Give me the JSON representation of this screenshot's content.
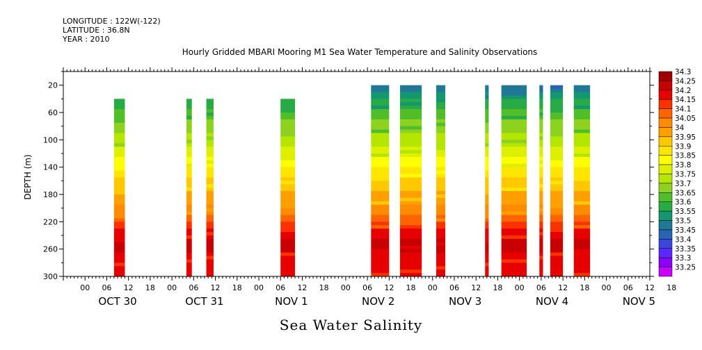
{
  "meta": {
    "longitude": "LONGITUDE : 122W(-122)",
    "latitude": "LATITUDE : 36.8N",
    "year": "YEAR : 2010"
  },
  "chart_data": {
    "type": "heatmap",
    "title": "Hourly Gridded MBARI Mooring M1 Sea Water Temperature and Salinity Observations",
    "xlabel": "Sea Water Salinity",
    "ylabel": "DEPTH (m)",
    "x_range_hours": [
      -6,
      156
    ],
    "x_ticks_hours": [
      "00",
      "06",
      "12",
      "18",
      "00",
      "06",
      "12",
      "18",
      "00",
      "06",
      "12",
      "18",
      "00",
      "06",
      "12",
      "18",
      "00",
      "06",
      "12",
      "18",
      "00",
      "06",
      "12",
      "18",
      "00",
      "06",
      "12",
      "18"
    ],
    "day_labels": [
      "OCT 30",
      "OCT 31",
      "NOV  1",
      "NOV  2",
      "NOV  3",
      "NOV  4",
      "NOV  5"
    ],
    "y_ticks": [
      20,
      60,
      100,
      140,
      180,
      220,
      260,
      300
    ],
    "ylim": [
      300,
      0
    ],
    "colorbar": {
      "levels": [
        "34.3",
        "34.25",
        "34.2",
        "34.15",
        "34.1",
        "34.05",
        "34",
        "33.95",
        "33.9",
        "33.85",
        "33.8",
        "33.75",
        "33.7",
        "33.65",
        "33.6",
        "33.55",
        "33.5",
        "33.45",
        "33.4",
        "33.35",
        "33.3",
        "33.25"
      ],
      "colors": [
        "#a00000",
        "#c80000",
        "#e60000",
        "#fa3200",
        "#ff6400",
        "#ff8c00",
        "#ffa000",
        "#ffc800",
        "#ffe600",
        "#ffff00",
        "#dcf000",
        "#b4e600",
        "#8cd21e",
        "#50be28",
        "#28aa46",
        "#14966e",
        "#1e7896",
        "#2864b4",
        "#3c46dc",
        "#5a28ff",
        "#8c00ff",
        "#c800ff"
      ]
    },
    "data_blocks": [
      {
        "start_hour": 8,
        "end_hour": 11,
        "top_depth": 40
      },
      {
        "start_hour": 28,
        "end_hour": 29.5,
        "top_depth": 40
      },
      {
        "start_hour": 33.5,
        "end_hour": 35.5,
        "top_depth": 40
      },
      {
        "start_hour": 54,
        "end_hour": 58,
        "top_depth": 40
      },
      {
        "start_hour": 79,
        "end_hour": 84,
        "top_depth": 20
      },
      {
        "start_hour": 87,
        "end_hour": 93,
        "top_depth": 20
      },
      {
        "start_hour": 97,
        "end_hour": 99.5,
        "top_depth": 20
      },
      {
        "start_hour": 110.5,
        "end_hour": 111.5,
        "top_depth": 20
      },
      {
        "start_hour": 115,
        "end_hour": 122,
        "top_depth": 20
      },
      {
        "start_hour": 125.5,
        "end_hour": 126.5,
        "top_depth": 20
      },
      {
        "start_hour": 128.5,
        "end_hour": 132,
        "top_depth": 20
      },
      {
        "start_hour": 135,
        "end_hour": 139.5,
        "top_depth": 20
      }
    ]
  }
}
